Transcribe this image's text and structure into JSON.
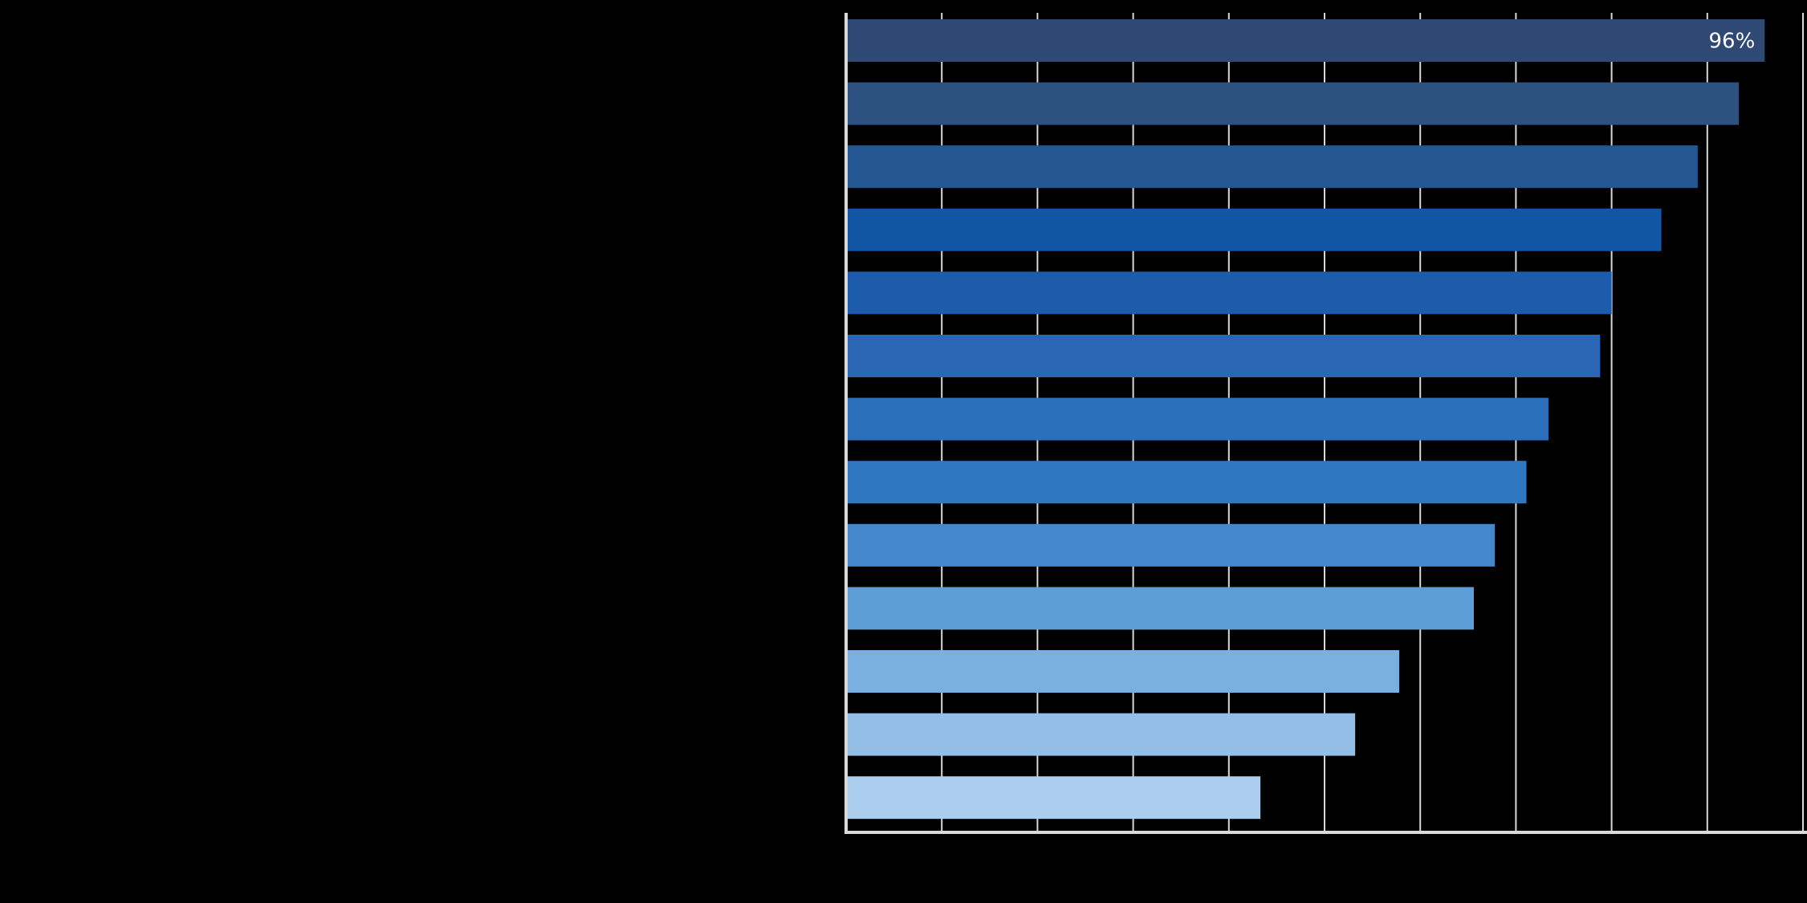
{
  "chart_data": {
    "type": "bar",
    "orientation": "horizontal",
    "xlim": [
      0,
      100
    ],
    "grid": true,
    "value_labels": [
      "96%",
      "",
      "",
      "",
      "",
      "",
      "",
      "",
      "",
      "",
      "",
      "",
      ""
    ],
    "values": [
      96,
      93.3,
      89,
      85.2,
      80,
      78.8,
      73.4,
      71.1,
      67.8,
      65.6,
      57.8,
      53.2,
      43.3
    ],
    "colors": [
      "#2e4a74",
      "#2d5282",
      "#245791",
      "#1155a4",
      "#1d5bab",
      "#2a66b4",
      "#2c6fba",
      "#2f78bf",
      "#4488cb",
      "#5e9ed6",
      "#79b0e0",
      "#93bfe7",
      "#abcdee"
    ]
  }
}
